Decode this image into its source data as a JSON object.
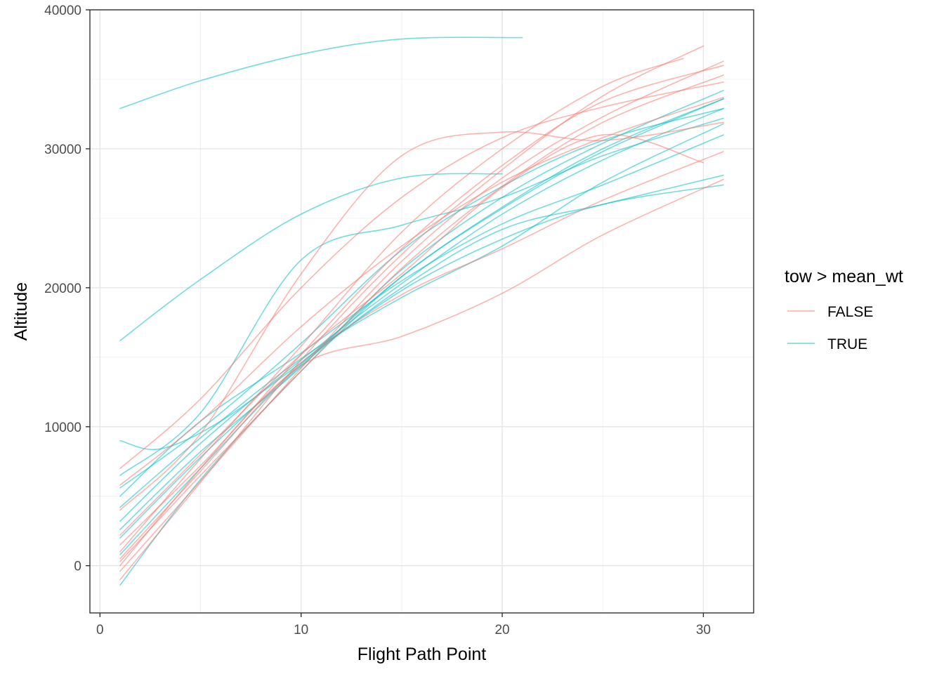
{
  "chart_data": {
    "type": "line",
    "xlabel": "Flight Path Point",
    "ylabel": "Altitude",
    "xlim": [
      -0.5,
      32.5
    ],
    "ylim": [
      -3400,
      40000
    ],
    "x_ticks": [
      0,
      10,
      20,
      30
    ],
    "x_tick_labels": [
      "0",
      "10",
      "20",
      "30"
    ],
    "y_ticks": [
      0,
      10000,
      20000,
      30000,
      40000
    ],
    "y_tick_labels": [
      "0",
      "10000",
      "20000",
      "30000",
      "40000"
    ],
    "grid": true,
    "legend": {
      "title": "tow > mean_wt",
      "position": "right",
      "entries": [
        {
          "label": "FALSE",
          "color": "#F8766D"
        },
        {
          "label": "TRUE",
          "color": "#00BFC4"
        }
      ]
    },
    "series": [
      {
        "group": "TRUE",
        "x": [
          1,
          5,
          10,
          15,
          21
        ],
        "y": [
          32900,
          34900,
          36800,
          37900,
          38000
        ]
      },
      {
        "group": "TRUE",
        "x": [
          1,
          5,
          10,
          15,
          20
        ],
        "y": [
          16200,
          20600,
          25300,
          27900,
          28200
        ]
      },
      {
        "group": "TRUE",
        "x": [
          1,
          3,
          6,
          10,
          15,
          20,
          25,
          31
        ],
        "y": [
          9000,
          8400,
          10400,
          14600,
          20000,
          24200,
          26000,
          28100
        ]
      },
      {
        "group": "TRUE",
        "x": [
          1,
          5,
          10,
          15,
          20,
          25,
          31
        ],
        "y": [
          5000,
          10400,
          15300,
          20500,
          24600,
          27400,
          31000
        ]
      },
      {
        "group": "TRUE",
        "x": [
          1,
          5,
          10,
          15,
          20,
          25,
          31
        ],
        "y": [
          3200,
          8800,
          14800,
          20300,
          25300,
          29200,
          32900
        ]
      },
      {
        "group": "TRUE",
        "x": [
          1,
          5,
          10,
          15,
          20,
          25,
          31
        ],
        "y": [
          2000,
          7800,
          14500,
          20800,
          25800,
          30000,
          33600
        ]
      },
      {
        "group": "TRUE",
        "x": [
          1,
          5,
          10,
          15,
          20,
          25,
          31
        ],
        "y": [
          6500,
          11000,
          22000,
          24500,
          26500,
          29500,
          32200
        ]
      },
      {
        "group": "TRUE",
        "x": [
          1,
          5,
          10,
          15,
          20,
          25,
          31
        ],
        "y": [
          -1400,
          6200,
          14000,
          20800,
          25700,
          29800,
          33600
        ]
      },
      {
        "group": "TRUE",
        "x": [
          1,
          5,
          10,
          15,
          20,
          25,
          31
        ],
        "y": [
          800,
          7000,
          14400,
          19800,
          23500,
          26000,
          27400
        ]
      },
      {
        "group": "TRUE",
        "x": [
          1,
          5,
          10,
          15,
          20,
          25,
          31
        ],
        "y": [
          4200,
          9200,
          14900,
          19300,
          23000,
          27600,
          31800
        ]
      },
      {
        "group": "TRUE",
        "x": [
          1,
          5,
          10,
          15,
          20,
          25,
          31
        ],
        "y": [
          2600,
          8200,
          14300,
          21300,
          26500,
          30400,
          34200
        ]
      },
      {
        "group": "TRUE",
        "x": [
          1,
          5,
          10,
          15,
          20,
          25,
          31
        ],
        "y": [
          5600,
          9800,
          16000,
          22700,
          27300,
          30600,
          32900
        ]
      },
      {
        "group": "FALSE",
        "x": [
          1,
          5,
          10,
          15,
          20,
          25,
          31
        ],
        "y": [
          7000,
          12000,
          20000,
          26500,
          30800,
          33000,
          34800
        ]
      },
      {
        "group": "FALSE",
        "x": [
          1,
          5,
          10,
          15,
          20,
          25,
          30
        ],
        "y": [
          -1000,
          6000,
          14800,
          22400,
          28500,
          33800,
          37400
        ]
      },
      {
        "group": "FALSE",
        "x": [
          1,
          5,
          10,
          15,
          20,
          25,
          31
        ],
        "y": [
          300,
          6500,
          14000,
          21400,
          27300,
          31900,
          35300
        ]
      },
      {
        "group": "FALSE",
        "x": [
          1,
          5,
          10,
          15,
          20,
          25,
          31
        ],
        "y": [
          -400,
          6100,
          14200,
          21900,
          27900,
          32300,
          36300
        ]
      },
      {
        "group": "FALSE",
        "x": [
          1,
          5,
          10,
          15,
          20,
          25,
          31
        ],
        "y": [
          1500,
          7200,
          14400,
          16500,
          19600,
          23800,
          27800
        ]
      },
      {
        "group": "FALSE",
        "x": [
          1,
          5,
          10,
          15,
          20,
          25,
          30
        ],
        "y": [
          2200,
          8000,
          15200,
          21000,
          27200,
          31000,
          29000
        ]
      },
      {
        "group": "FALSE",
        "x": [
          1,
          5,
          10,
          15,
          20,
          25,
          31
        ],
        "y": [
          4000,
          9500,
          21000,
          29500,
          31200,
          30600,
          31900
        ]
      },
      {
        "group": "FALSE",
        "x": [
          1,
          5,
          10,
          15,
          20,
          25,
          31
        ],
        "y": [
          0,
          7000,
          15200,
          22800,
          28800,
          33400,
          36000
        ]
      },
      {
        "group": "FALSE",
        "x": [
          1,
          5,
          10,
          15,
          20,
          25,
          31
        ],
        "y": [
          5800,
          10400,
          17200,
          23000,
          27600,
          30800,
          33700
        ]
      },
      {
        "group": "FALSE",
        "x": [
          1,
          5,
          10,
          15,
          20,
          25,
          29
        ],
        "y": [
          1000,
          7700,
          15800,
          24000,
          30000,
          34500,
          36500
        ]
      },
      {
        "group": "FALSE",
        "x": [
          1,
          5,
          10,
          15,
          20,
          25,
          31
        ],
        "y": [
          500,
          6800,
          14600,
          19500,
          22800,
          26300,
          29800
        ]
      }
    ]
  }
}
